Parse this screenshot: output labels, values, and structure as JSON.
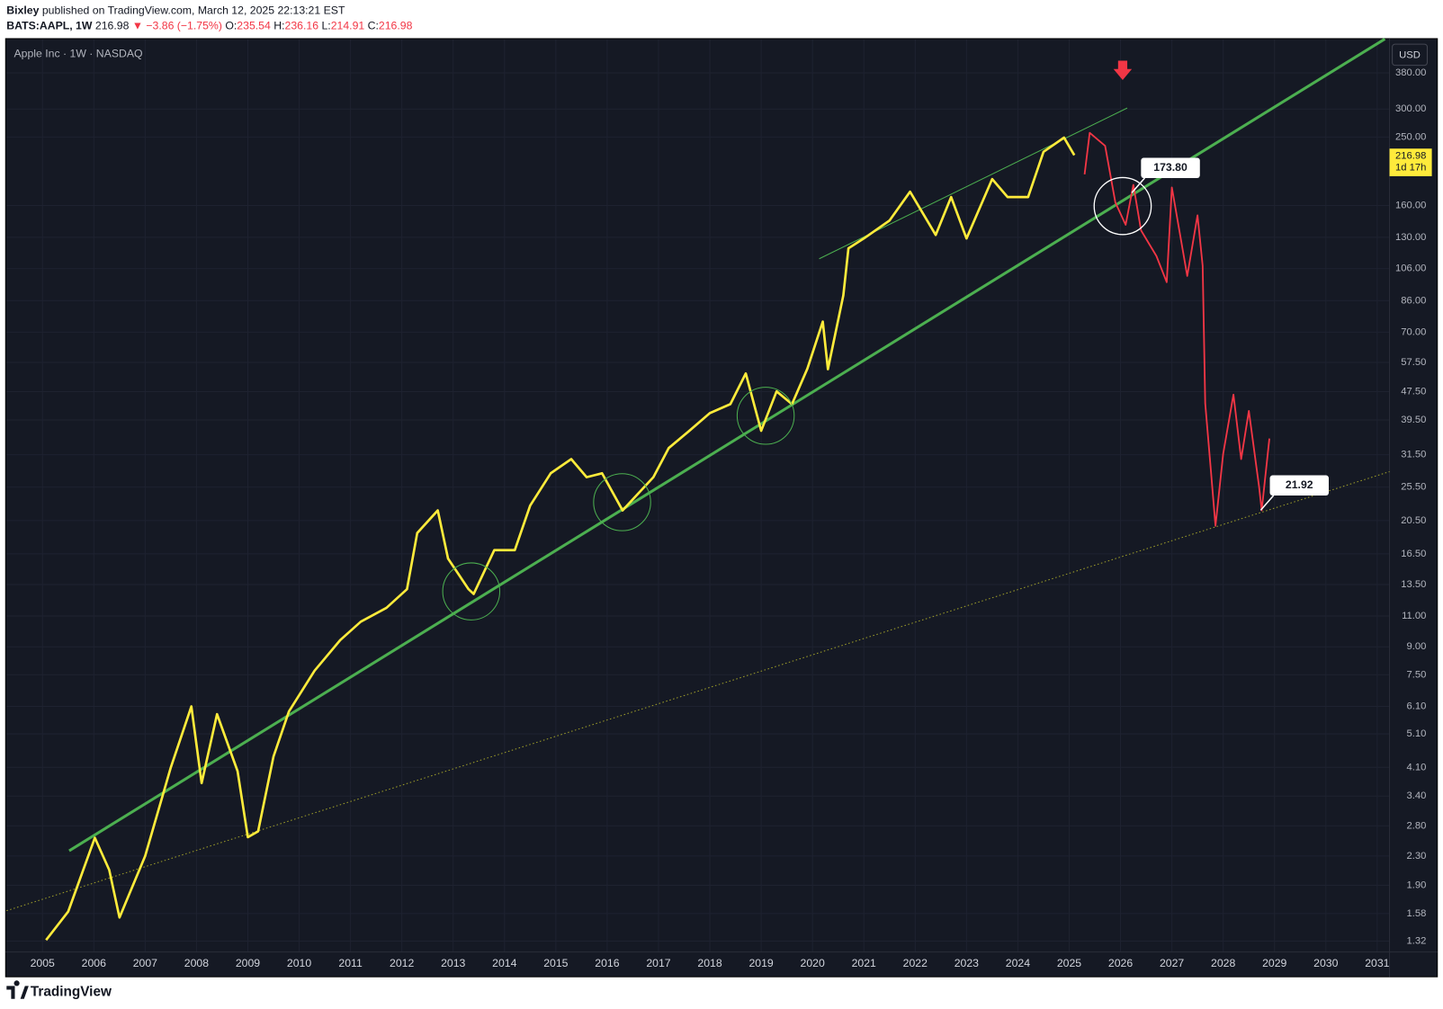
{
  "chart_data": {
    "type": "line",
    "author": "Bixley",
    "published": "published on TradingView.com, March 12, 2025 22:13:21 EST",
    "symbol": "BATS:AAPL, 1W",
    "last_price": 216.98,
    "change_label": "▼ −3.86 (−1.75%)",
    "quote_items": [
      {
        "label": "O:",
        "value": 235.54
      },
      {
        "label": "H:",
        "value": 236.16
      },
      {
        "label": "L:",
        "value": 214.91
      },
      {
        "label": "C:",
        "value": 216.98
      }
    ],
    "title": "Apple Inc · 1W · NASDAQ",
    "currency": "USD",
    "countdown": "1d 17h",
    "logo": "TradingView",
    "log_scale": true,
    "grid": true,
    "xlim": [
      2004.3,
      2031.24
    ],
    "xticks": [
      2005,
      2006,
      2007,
      2008,
      2009,
      2010,
      2011,
      2012,
      2013,
      2014,
      2015,
      2016,
      2017,
      2018,
      2019,
      2020,
      2021,
      2022,
      2023,
      2024,
      2025,
      2026,
      2027,
      2028,
      2029,
      2030,
      2031
    ],
    "ylim": [
      1.23,
      472
    ],
    "yticks": [
      {
        "value": 380,
        "label": "380.00"
      },
      {
        "value": 300,
        "label": "300.00"
      },
      {
        "value": 250,
        "label": "250.00"
      },
      {
        "value": 160,
        "label": "160.00"
      },
      {
        "value": 130,
        "label": "130.00"
      },
      {
        "value": 106,
        "label": "106.00"
      },
      {
        "value": 86,
        "label": "86.00"
      },
      {
        "value": 70,
        "label": "70.00"
      },
      {
        "value": 57.5,
        "label": "57.50"
      },
      {
        "value": 47.5,
        "label": "47.50"
      },
      {
        "value": 39.5,
        "label": "39.50"
      },
      {
        "value": 31.5,
        "label": "31.50"
      },
      {
        "value": 25.5,
        "label": "25.50"
      },
      {
        "value": 20.5,
        "label": "20.50"
      },
      {
        "value": 16.5,
        "label": "16.50"
      },
      {
        "value": 13.5,
        "label": "13.50"
      },
      {
        "value": 11,
        "label": "11.00"
      },
      {
        "value": 9,
        "label": "9.00"
      },
      {
        "value": 7.5,
        "label": "7.50"
      },
      {
        "value": 6.1,
        "label": "6.10"
      },
      {
        "value": 5.1,
        "label": "5.10"
      },
      {
        "value": 4.1,
        "label": "4.10"
      },
      {
        "value": 3.4,
        "label": "3.40"
      },
      {
        "value": 2.8,
        "label": "2.80"
      },
      {
        "value": 2.3,
        "label": "2.30"
      },
      {
        "value": 1.9,
        "label": "1.90"
      },
      {
        "value": 1.58,
        "label": "1.58"
      },
      {
        "value": 1.32,
        "label": "1.32"
      }
    ],
    "series": [
      {
        "color": "#9e9e2a",
        "width": 1,
        "style": "dotted",
        "x": [
          2004.3,
          2031.24
        ],
        "values": [
          1.61,
          28.2
        ]
      },
      {
        "color": "#4caf50",
        "width": 3,
        "style": "solid",
        "x": [
          2005.52,
          2031.15
        ],
        "values": [
          2.38,
          474
        ]
      },
      {
        "color": "#4caf50",
        "width": 1,
        "style": "solid",
        "x": [
          2020.13,
          2026.13
        ],
        "values": [
          113,
          302
        ]
      },
      {
        "color": "#ffeb3b",
        "width": 2.6,
        "style": "solid",
        "x": [
          2005.07,
          2005.5,
          2006.02,
          2006.3,
          2006.5,
          2007.0,
          2007.5,
          2007.9,
          2008.1,
          2008.4,
          2008.8,
          2009.0,
          2009.2,
          2009.5,
          2009.8,
          2010.3,
          2010.8,
          2011.2,
          2011.7,
          2012.1,
          2012.3,
          2012.7,
          2012.9,
          2013.3,
          2013.4,
          2013.8,
          2014.2,
          2014.5,
          2014.9,
          2015.3,
          2015.6,
          2015.9,
          2016.3,
          2016.9,
          2017.2,
          2017.6,
          2018.0,
          2018.4,
          2018.7,
          2019.0,
          2019.3,
          2019.6,
          2019.9,
          2020.2,
          2020.3,
          2020.6,
          2020.7,
          2021.0,
          2021.5,
          2021.9,
          2022.4,
          2022.7,
          2023.0,
          2023.5,
          2023.8,
          2024.2,
          2024.5,
          2024.9,
          2025.1
        ],
        "values": [
          1.33,
          1.6,
          2.59,
          2.1,
          1.54,
          2.3,
          4.1,
          6.1,
          3.7,
          5.8,
          4.0,
          2.6,
          2.7,
          4.4,
          5.9,
          7.7,
          9.4,
          10.6,
          11.6,
          13.1,
          18.9,
          21.9,
          16.0,
          13.1,
          12.7,
          16.9,
          16.9,
          22.6,
          27.9,
          30.6,
          27.2,
          27.9,
          21.9,
          27.2,
          32.9,
          36.8,
          41.3,
          43.8,
          53.5,
          36.8,
          47.6,
          43.8,
          55.2,
          75,
          55,
          89,
          121,
          129,
          145,
          175,
          132,
          169,
          129,
          190,
          169,
          169,
          227,
          249,
          222
        ]
      },
      {
        "color": "#f23645",
        "width": 1.8,
        "style": "solid",
        "x": [
          2025.3,
          2025.4,
          2025.7,
          2025.9,
          2026.1,
          2026.25,
          2026.4,
          2026.7,
          2026.9,
          2027.0,
          2027.3,
          2027.5,
          2027.6,
          2027.65,
          2027.75,
          2027.85,
          2028.0,
          2028.2,
          2028.35,
          2028.5,
          2028.7,
          2028.75,
          2028.9
        ],
        "values": [
          196,
          257,
          236,
          163,
          141,
          183,
          136,
          115,
          97,
          180,
          101,
          150,
          108,
          44,
          29.6,
          19.8,
          31.7,
          46.6,
          30.6,
          41.9,
          25.5,
          21.9,
          35.0
        ]
      }
    ],
    "annotations": [
      {
        "x": 2026.22,
        "value": 173.8,
        "label": "173.80"
      },
      {
        "x": 2028.73,
        "value": 21.92,
        "label": "21.92"
      }
    ]
  }
}
